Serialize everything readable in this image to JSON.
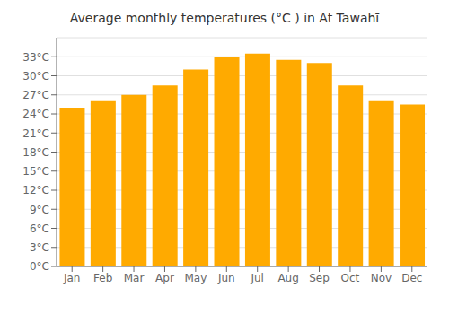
{
  "chart_data": {
    "type": "bar",
    "title": "Average monthly temperatures (°C ) in At Tawāhī",
    "categories": [
      "Jan",
      "Feb",
      "Mar",
      "Apr",
      "May",
      "Jun",
      "Jul",
      "Aug",
      "Sep",
      "Oct",
      "Nov",
      "Dec"
    ],
    "values": [
      25.0,
      26.0,
      27.0,
      28.5,
      31.0,
      33.0,
      33.5,
      32.5,
      32.0,
      28.5,
      26.0,
      25.5
    ],
    "color": "#ffaa00",
    "ylim": [
      0,
      36
    ],
    "yticks": [
      {
        "value": 0,
        "label": "0°C"
      },
      {
        "value": 3,
        "label": "3°C"
      },
      {
        "value": 6,
        "label": "6°C"
      },
      {
        "value": 9,
        "label": "9°C"
      },
      {
        "value": 12,
        "label": "12°C"
      },
      {
        "value": 15,
        "label": "15°C"
      },
      {
        "value": 18,
        "label": "18°C"
      },
      {
        "value": 21,
        "label": "21°C"
      },
      {
        "value": 24,
        "label": "24°C"
      },
      {
        "value": 27,
        "label": "27°C"
      },
      {
        "value": 30,
        "label": "30°C"
      },
      {
        "value": 33,
        "label": "33°C"
      }
    ],
    "grid": true
  }
}
